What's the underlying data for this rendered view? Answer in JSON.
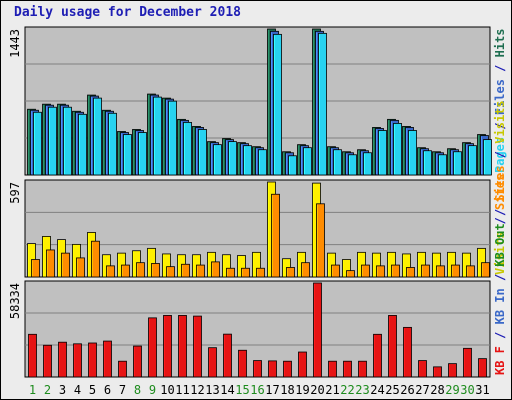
{
  "title": "Daily usage for December 2018",
  "chart_data": [
    {
      "type": "bar",
      "panel": "top",
      "axis_max_label": "1443",
      "categories": [
        "1",
        "2",
        "3",
        "4",
        "5",
        "6",
        "7",
        "8",
        "9",
        "10",
        "11",
        "12",
        "13",
        "14",
        "15",
        "16",
        "17",
        "18",
        "19",
        "20",
        "21",
        "22",
        "23",
        "24",
        "25",
        "26",
        "27",
        "28",
        "29",
        "30",
        "31"
      ],
      "weekend_days": [
        "1",
        "2",
        "8",
        "9",
        "15",
        "16",
        "22",
        "23",
        "29",
        "30"
      ],
      "series": [
        {
          "name": "Hits",
          "color": "#1e6e50",
          "values": [
            650,
            700,
            700,
            630,
            790,
            640,
            430,
            450,
            800,
            760,
            550,
            480,
            330,
            360,
            320,
            280,
            1443,
            230,
            300,
            1443,
            280,
            230,
            250,
            470,
            550,
            480,
            270,
            230,
            260,
            320,
            400
          ]
        },
        {
          "name": "Files",
          "color": "#3a68c8",
          "values": [
            640,
            690,
            690,
            620,
            780,
            630,
            420,
            440,
            790,
            750,
            540,
            470,
            320,
            350,
            310,
            270,
            1420,
            220,
            290,
            1420,
            270,
            220,
            240,
            460,
            540,
            470,
            260,
            220,
            250,
            310,
            390
          ]
        },
        {
          "name": "Pages",
          "color": "#28d2f0",
          "values": [
            620,
            670,
            670,
            600,
            760,
            610,
            400,
            420,
            770,
            730,
            520,
            450,
            300,
            330,
            290,
            250,
            1390,
            190,
            270,
            1400,
            250,
            200,
            220,
            440,
            510,
            440,
            240,
            200,
            230,
            290,
            350
          ]
        }
      ],
      "legend": [
        "Pages",
        "/",
        "Files",
        "/",
        "Hits"
      ],
      "legend_colors": [
        "#28d2f0",
        "#1e1eb4",
        "#3a68c8",
        "#1e1eb4",
        "#1e6e50"
      ]
    },
    {
      "type": "bar",
      "panel": "middle",
      "axis_max_label": "597",
      "categories": [
        "1",
        "2",
        "3",
        "4",
        "5",
        "6",
        "7",
        "8",
        "9",
        "10",
        "11",
        "12",
        "13",
        "14",
        "15",
        "16",
        "17",
        "18",
        "19",
        "20",
        "21",
        "22",
        "23",
        "24",
        "25",
        "26",
        "27",
        "28",
        "29",
        "30",
        "31"
      ],
      "series": [
        {
          "name": "Visits",
          "color": "#fff000",
          "values": [
            210,
            255,
            235,
            205,
            280,
            140,
            150,
            165,
            180,
            145,
            140,
            140,
            155,
            140,
            135,
            155,
            597,
            115,
            155,
            590,
            150,
            110,
            155,
            150,
            155,
            145,
            155,
            150,
            155,
            150,
            180
          ]
        },
        {
          "name": "Sites",
          "color": "#ff8c00",
          "values": [
            110,
            170,
            150,
            120,
            225,
            70,
            75,
            90,
            85,
            65,
            80,
            75,
            95,
            55,
            55,
            55,
            520,
            60,
            90,
            460,
            75,
            40,
            75,
            70,
            75,
            60,
            75,
            70,
            75,
            70,
            90
          ]
        }
      ],
      "legend": [
        "Visits",
        "/",
        "Sites"
      ],
      "legend_colors": [
        "#c8c800",
        "#1e1eb4",
        "#ff8c00"
      ]
    },
    {
      "type": "bar",
      "panel": "bottom",
      "axis_max_label": "58334",
      "categories": [
        "1",
        "2",
        "3",
        "4",
        "5",
        "6",
        "7",
        "8",
        "9",
        "10",
        "11",
        "12",
        "13",
        "14",
        "15",
        "16",
        "17",
        "18",
        "19",
        "20",
        "21",
        "22",
        "23",
        "24",
        "25",
        "26",
        "27",
        "28",
        "29",
        "30",
        "31"
      ],
      "series": [
        {
          "name": "KB F",
          "color": "#e61414",
          "values": [
            26500,
            19700,
            21600,
            20600,
            21100,
            22300,
            9800,
            19200,
            36700,
            38200,
            38200,
            37800,
            18200,
            26600,
            16600,
            10200,
            10000,
            9800,
            15500,
            58334,
            9800,
            9800,
            9800,
            26500,
            38200,
            30800,
            10200,
            6300,
            8300,
            17800,
            11400
          ]
        }
      ],
      "legend": [
        "KB F",
        "/",
        "KB In",
        "/",
        "KB Out",
        "/",
        "Sites",
        "/",
        "Visits"
      ],
      "legend_colors": [
        "#e61414",
        "#1e1eb4",
        "#3a68c8",
        "#1e1eb4",
        "#1e8c1e",
        "#1e1eb4",
        "#ff8c00",
        "#1e1eb4",
        "#c8c800"
      ]
    }
  ]
}
